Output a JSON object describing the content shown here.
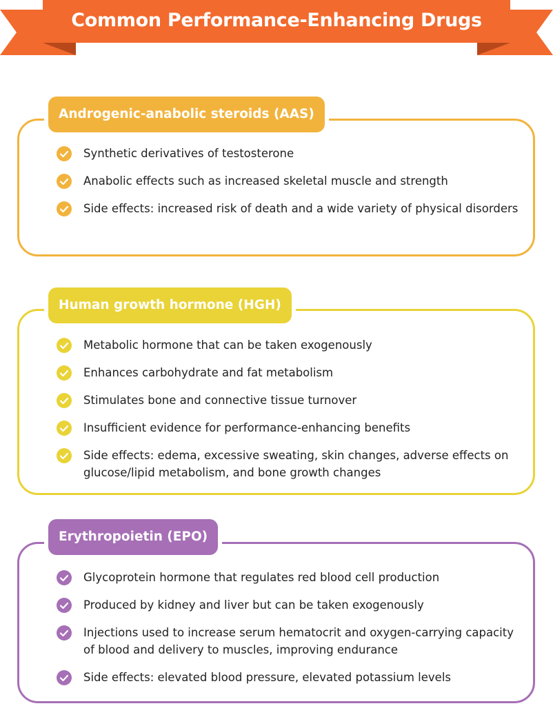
{
  "header": {
    "title": "Common Performance-Enhancing Drugs"
  },
  "sections": [
    {
      "heading": "Androgenic-anabolic steroids (AAS)",
      "items": [
        "Synthetic derivatives of testosterone",
        "Anabolic effects such as increased skeletal muscle and strength",
        "Side effects: increased risk of death and a wide variety of physical disorders"
      ]
    },
    {
      "heading": "Human growth hormone (HGH)",
      "items": [
        "Metabolic hormone that can be taken exogenously",
        "Enhances carbohydrate and fat metabolism",
        "Stimulates bone and connective tissue turnover",
        "Insufficient evidence for performance-enhancing benefits",
        "Side effects: edema, excessive sweating, skin changes, adverse effects on glucose/lipid metabolism, and bone growth changes"
      ]
    },
    {
      "heading": "Erythropoietin (EPO)",
      "items": [
        "Glycoprotein hormone that regulates red blood cell production",
        "Produced by kidney and liver but can be taken exogenously",
        "Injections used to increase serum hematocrit and oxygen-carrying capacity of blood and delivery to muscles, improving endurance",
        "Side effects: elevated blood pressure, elevated potassium levels"
      ]
    }
  ]
}
